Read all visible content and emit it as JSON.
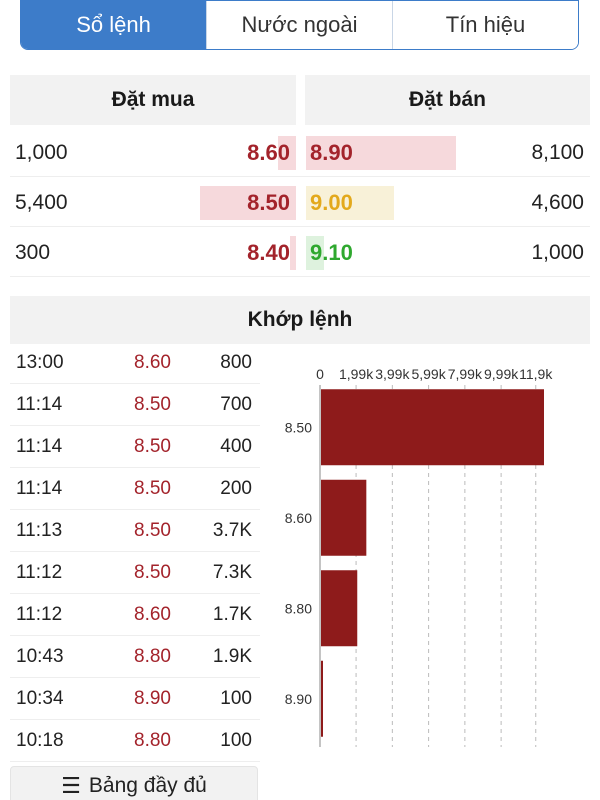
{
  "tabs": [
    {
      "label": "Sổ lệnh",
      "active": true
    },
    {
      "label": "Nước ngoài",
      "active": false
    },
    {
      "label": "Tín hiệu",
      "active": false
    }
  ],
  "order_book": {
    "buy_header": "Đặt mua",
    "sell_header": "Đặt bán",
    "rows": [
      {
        "buy_volume": "1,000",
        "buy_price": "8.60",
        "sell_price": "8.90",
        "sell_volume": "8,100",
        "sell_color": "#a3232b",
        "sell_bar_color": "#f6d9dc"
      },
      {
        "buy_volume": "5,400",
        "buy_price": "8.50",
        "sell_price": "9.00",
        "sell_volume": "4,600",
        "sell_color": "#e3a91c",
        "sell_bar_color": "#f8f1d8"
      },
      {
        "buy_volume": "300",
        "buy_price": "8.40",
        "sell_price": "9.10",
        "sell_volume": "1,000",
        "sell_color": "#2fa82f",
        "sell_bar_color": "#def2de"
      }
    ]
  },
  "matched": {
    "header": "Khớp lệnh",
    "trades": [
      {
        "time": "13:00",
        "price": "8.60",
        "volume": "800"
      },
      {
        "time": "11:14",
        "price": "8.50",
        "volume": "700"
      },
      {
        "time": "11:14",
        "price": "8.50",
        "volume": "400"
      },
      {
        "time": "11:14",
        "price": "8.50",
        "volume": "200"
      },
      {
        "time": "11:13",
        "price": "8.50",
        "volume": "3.7K"
      },
      {
        "time": "11:12",
        "price": "8.50",
        "volume": "7.3K"
      },
      {
        "time": "11:12",
        "price": "8.60",
        "volume": "1.7K"
      },
      {
        "time": "10:43",
        "price": "8.80",
        "volume": "1.9K"
      },
      {
        "time": "10:34",
        "price": "8.90",
        "volume": "100"
      },
      {
        "time": "10:18",
        "price": "8.80",
        "volume": "100"
      }
    ]
  },
  "chart_data": {
    "type": "bar",
    "orientation": "horizontal",
    "categories": [
      "8.50",
      "8.60",
      "8.80",
      "8.90"
    ],
    "values": [
      12300,
      2500,
      2000,
      100
    ],
    "x_tick_labels": [
      "0",
      "1,99k",
      "3,99k",
      "5,99k",
      "7,99k",
      "9,99k",
      "11,9k"
    ],
    "x_tick_values": [
      0,
      1990,
      3990,
      5990,
      7990,
      9990,
      11900
    ],
    "xlim": [
      0,
      12300
    ],
    "bar_color": "#8e1b1b",
    "grid": true
  },
  "full_table_button": {
    "label": "Bảng đầy đủ",
    "icon": "list-icon"
  }
}
